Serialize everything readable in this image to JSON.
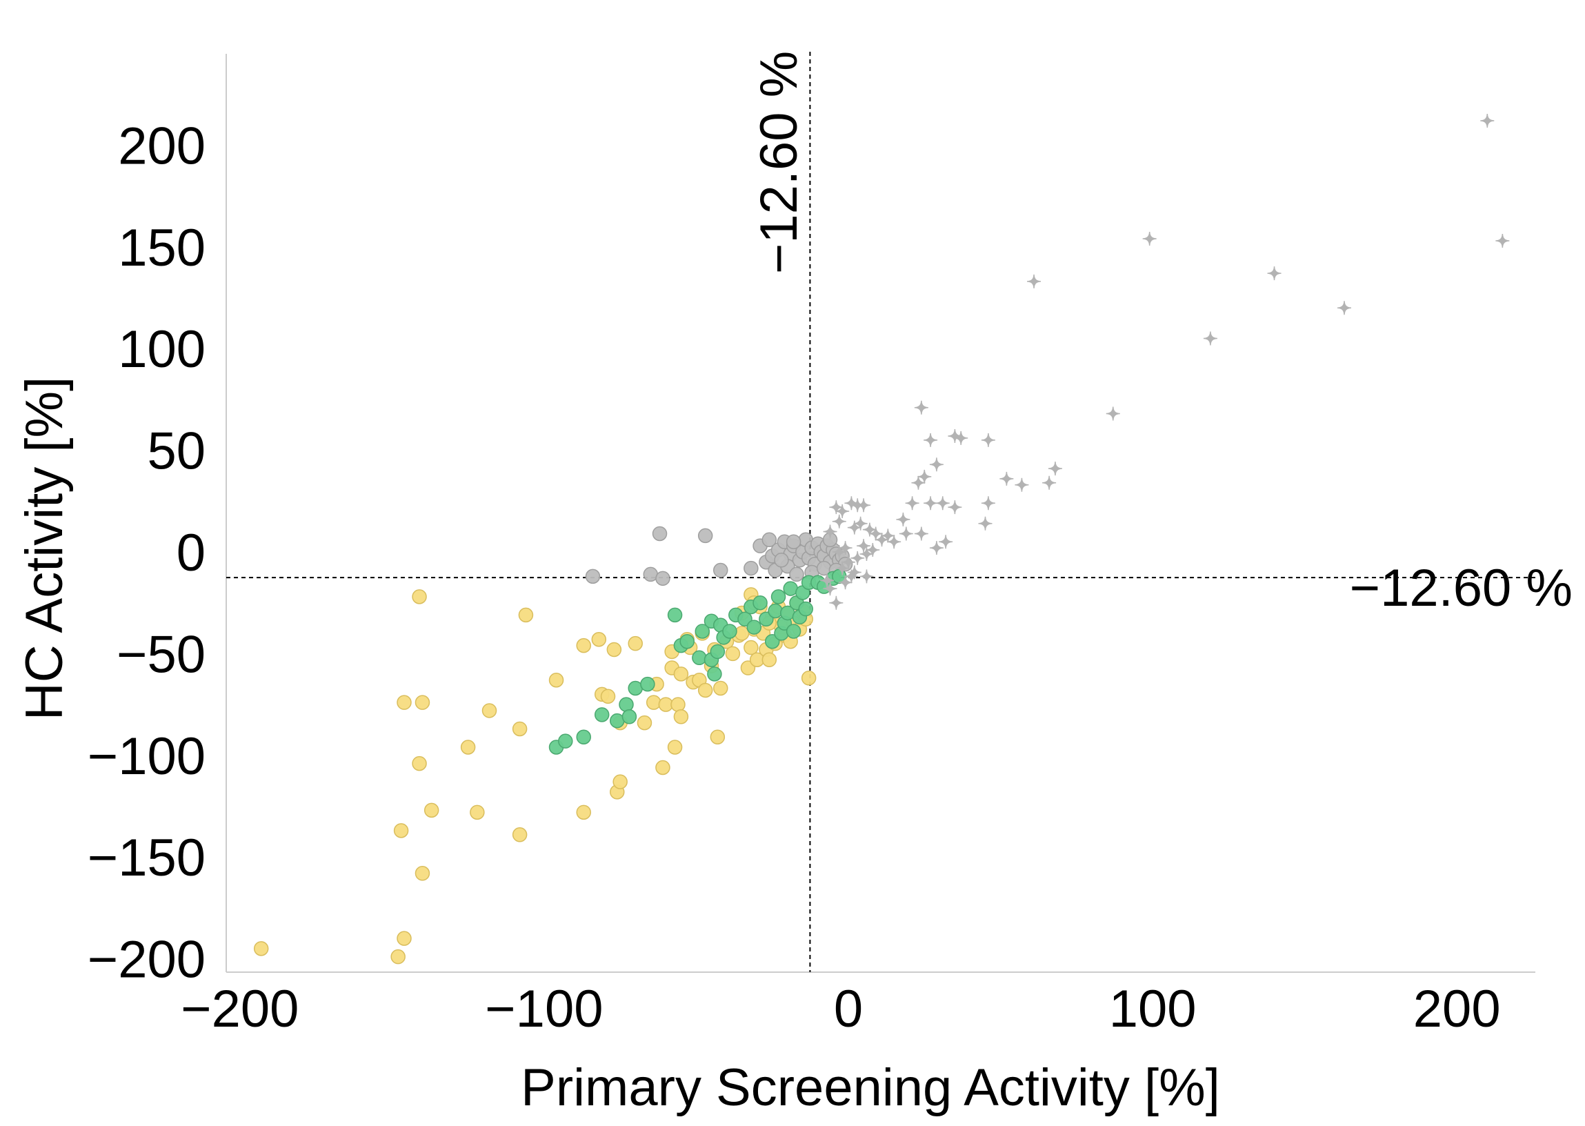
{
  "chart_data": {
    "type": "scatter",
    "title": "",
    "xlabel": "Primary Screening Activity [%]",
    "ylabel": "HC Activity [%]",
    "xlim": [
      -210,
      232
    ],
    "ylim": [
      -218,
      228
    ],
    "xticks": [
      -200,
      -100,
      0,
      100,
      200
    ],
    "yticks": [
      -200,
      -150,
      -100,
      -50,
      0,
      50,
      100,
      150,
      200
    ],
    "grid": false,
    "legend": "none",
    "threshold_x": -12.6,
    "threshold_y": -12.6,
    "threshold_x_label": "−12.60 %",
    "threshold_y_label": "−12.60 %",
    "colors": {
      "yellow": "#f7dc7f",
      "yellow_edge": "#d9bd5c",
      "green": "#66cc8e",
      "green_edge": "#4aa86f",
      "gray": "#bdbdbd",
      "gray_edge": "#9e9e9e",
      "cross": "#b3b3b3",
      "axis": "#cccccc"
    },
    "series": [
      {
        "name": "yellow",
        "marker": "circle",
        "points": [
          [
            -193,
            -195
          ],
          [
            -148,
            -199
          ],
          [
            -146,
            -190
          ],
          [
            -147,
            -137
          ],
          [
            -140,
            -158
          ],
          [
            -141,
            -104
          ],
          [
            -137,
            -127
          ],
          [
            -146,
            -74
          ],
          [
            -140,
            -74
          ],
          [
            -141,
            -22
          ],
          [
            -125,
            -96
          ],
          [
            -122,
            -128
          ],
          [
            -118,
            -78
          ],
          [
            -108,
            -139
          ],
          [
            -108,
            -87
          ],
          [
            -106,
            -31
          ],
          [
            -96,
            -63
          ],
          [
            -87,
            -128
          ],
          [
            -87,
            -46
          ],
          [
            -82,
            -43
          ],
          [
            -81,
            -70
          ],
          [
            -79,
            -71
          ],
          [
            -76,
            -118
          ],
          [
            -75,
            -113
          ],
          [
            -77,
            -48
          ],
          [
            -75,
            -84
          ],
          [
            -70,
            -45
          ],
          [
            -67,
            -84
          ],
          [
            -64,
            -74
          ],
          [
            -63,
            -65
          ],
          [
            -61,
            -106
          ],
          [
            -60,
            -75
          ],
          [
            -58,
            -49
          ],
          [
            -58,
            -57
          ],
          [
            -57,
            -96
          ],
          [
            -56,
            -75
          ],
          [
            -55,
            -60
          ],
          [
            -55,
            -81
          ],
          [
            -53,
            -43
          ],
          [
            -51,
            -64
          ],
          [
            -49,
            -63
          ],
          [
            -47,
            -68
          ],
          [
            -45,
            -56
          ],
          [
            -43,
            -91
          ],
          [
            -42,
            -67
          ],
          [
            -40,
            -44
          ],
          [
            -38,
            -50
          ],
          [
            -36,
            -41
          ],
          [
            -35,
            -30
          ],
          [
            -33,
            -57
          ],
          [
            -32,
            -47
          ],
          [
            -31,
            -38
          ],
          [
            -30,
            -53
          ],
          [
            -28,
            -40
          ],
          [
            -27,
            -48
          ],
          [
            -26,
            -53
          ],
          [
            -25,
            -32
          ],
          [
            -24,
            -45
          ],
          [
            -23,
            -27
          ],
          [
            -22,
            -37
          ],
          [
            -21,
            -41
          ],
          [
            -20,
            -30
          ],
          [
            -18,
            -35
          ],
          [
            -17,
            -25
          ],
          [
            -16,
            -38
          ],
          [
            -15,
            -29
          ],
          [
            -14,
            -33
          ],
          [
            -13,
            -62
          ],
          [
            -35,
            -40
          ],
          [
            -32,
            -21
          ],
          [
            -29,
            -27
          ],
          [
            -26,
            -35
          ],
          [
            -44,
            -48
          ],
          [
            -48,
            -40
          ],
          [
            -52,
            -47
          ],
          [
            -31,
            -25
          ],
          [
            -19,
            -44
          ]
        ]
      },
      {
        "name": "green",
        "marker": "circle",
        "points": [
          [
            -96,
            -96
          ],
          [
            -93,
            -93
          ],
          [
            -87,
            -91
          ],
          [
            -81,
            -80
          ],
          [
            -76,
            -83
          ],
          [
            -73,
            -75
          ],
          [
            -72,
            -81
          ],
          [
            -70,
            -67
          ],
          [
            -66,
            -65
          ],
          [
            -57,
            -31
          ],
          [
            -55,
            -46
          ],
          [
            -53,
            -44
          ],
          [
            -49,
            -52
          ],
          [
            -48,
            -39
          ],
          [
            -45,
            -53
          ],
          [
            -45,
            -34
          ],
          [
            -44,
            -60
          ],
          [
            -43,
            -49
          ],
          [
            -42,
            -36
          ],
          [
            -41,
            -42
          ],
          [
            -39,
            -39
          ],
          [
            -37,
            -31
          ],
          [
            -34,
            -33
          ],
          [
            -32,
            -27
          ],
          [
            -31,
            -37
          ],
          [
            -29,
            -25
          ],
          [
            -27,
            -33
          ],
          [
            -25,
            -44
          ],
          [
            -24,
            -29
          ],
          [
            -23,
            -22
          ],
          [
            -22,
            -40
          ],
          [
            -21,
            -35
          ],
          [
            -20,
            -30
          ],
          [
            -19,
            -18
          ],
          [
            -18,
            -39
          ],
          [
            -17,
            -25
          ],
          [
            -16,
            -32
          ],
          [
            -15,
            -20
          ],
          [
            -14,
            -28
          ],
          [
            -13,
            -15
          ],
          [
            -10,
            -15
          ],
          [
            -8,
            -17
          ],
          [
            -5,
            -13
          ],
          [
            -3,
            -12
          ]
        ]
      },
      {
        "name": "gray",
        "marker": "circle",
        "points": [
          [
            -62,
            9
          ],
          [
            -47,
            8
          ],
          [
            -65,
            -11
          ],
          [
            -84,
            -12
          ],
          [
            -61,
            -13
          ],
          [
            -42,
            -9
          ],
          [
            -32,
            -8
          ],
          [
            -29,
            3
          ],
          [
            -27,
            -5
          ],
          [
            -25,
            -2
          ],
          [
            -23,
            1
          ],
          [
            -21,
            5
          ],
          [
            -19,
            -1
          ],
          [
            -18,
            3
          ],
          [
            -16,
            -4
          ],
          [
            -15,
            0
          ],
          [
            -14,
            6
          ],
          [
            -13,
            -3
          ],
          [
            -12,
            2
          ],
          [
            -11,
            -6
          ],
          [
            -10,
            4
          ],
          [
            -9,
            0
          ],
          [
            -8,
            -2
          ],
          [
            -7,
            3
          ],
          [
            -6,
            -5
          ],
          [
            -5,
            1
          ],
          [
            -4,
            -1
          ],
          [
            -3,
            -4
          ],
          [
            -2,
            -2
          ],
          [
            -1,
            -6
          ],
          [
            -24,
            -9
          ],
          [
            -20,
            -7
          ],
          [
            -17,
            -11
          ],
          [
            -12,
            -10
          ],
          [
            -8,
            -8
          ],
          [
            -4,
            -9
          ],
          [
            -26,
            6
          ],
          [
            -22,
            -4
          ],
          [
            -18,
            5
          ],
          [
            -6,
            6
          ]
        ]
      },
      {
        "name": "gray-cross",
        "marker": "cross",
        "points": [
          [
            210,
            212
          ],
          [
            215,
            153
          ],
          [
            99,
            154
          ],
          [
            61,
            133
          ],
          [
            140,
            137
          ],
          [
            163,
            120
          ],
          [
            119,
            105
          ],
          [
            87,
            68
          ],
          [
            24,
            71
          ],
          [
            27,
            55
          ],
          [
            35,
            57
          ],
          [
            37,
            56
          ],
          [
            46,
            55
          ],
          [
            29,
            43
          ],
          [
            25,
            37
          ],
          [
            23,
            34
          ],
          [
            52,
            36
          ],
          [
            57,
            33
          ],
          [
            66,
            34
          ],
          [
            68,
            41
          ],
          [
            46,
            24
          ],
          [
            27,
            24
          ],
          [
            31,
            24
          ],
          [
            35,
            22
          ],
          [
            21,
            24
          ],
          [
            45,
            14
          ],
          [
            18,
            16
          ],
          [
            19,
            9
          ],
          [
            24,
            9
          ],
          [
            32,
            5
          ],
          [
            29,
            2
          ],
          [
            1,
            24
          ],
          [
            3,
            23
          ],
          [
            5,
            23
          ],
          [
            -2,
            20
          ],
          [
            -4,
            22
          ],
          [
            4,
            14
          ],
          [
            9,
            9
          ],
          [
            11,
            6
          ],
          [
            13,
            8
          ],
          [
            15,
            5
          ],
          [
            8,
            1
          ],
          [
            6,
            -1
          ],
          [
            3,
            -3
          ],
          [
            0,
            -5
          ],
          [
            -2,
            -8
          ],
          [
            2,
            -10
          ],
          [
            6,
            -12
          ],
          [
            -1,
            2
          ],
          [
            5,
            3
          ],
          [
            -6,
            10
          ],
          [
            -3,
            15
          ],
          [
            2,
            12
          ],
          [
            7,
            11
          ],
          [
            -1,
            -15
          ],
          [
            -7,
            -14
          ],
          [
            -6,
            -18
          ],
          [
            -4,
            -25
          ],
          [
            1,
            -12
          ],
          [
            -3,
            0
          ]
        ]
      }
    ]
  }
}
